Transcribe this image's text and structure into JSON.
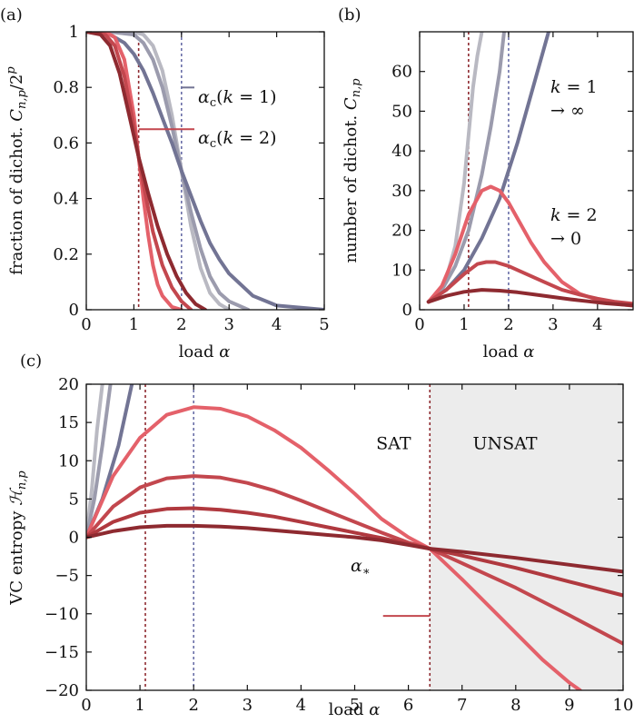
{
  "colors": {
    "grey_light": "#b9b9c2",
    "grey_mid": "#9b9bad",
    "grey_dark": "#727494",
    "red_light": "#e4616a",
    "red_mid": "#c3474e",
    "red_dark": "#8e2a30",
    "ref_red": "#8e2a30",
    "ref_blue": "#6a6fa8",
    "unsat_fill": "#ececec"
  },
  "chart_data": [
    {
      "id": "a",
      "panel_label": "(a)",
      "type": "line",
      "xlabel": "load α",
      "ylabel": "fraction of dichot. C_n,p/2^p",
      "xlim": [
        0,
        5
      ],
      "ylim": [
        0,
        1
      ],
      "xticks": [
        "0",
        "1",
        "2",
        "3",
        "4",
        "5"
      ],
      "yticks": [
        "0",
        "0.2",
        "0.4",
        "0.6",
        "0.8",
        "1"
      ],
      "ref_lines": [
        {
          "x": 1.1,
          "color": "ref_red"
        },
        {
          "x": 2.0,
          "color": "ref_blue"
        }
      ],
      "annotations": [
        {
          "text": "αc(k = 1)",
          "x": 3.4,
          "y": 0.78,
          "arrow_to_x": 2.0
        },
        {
          "text": "αc(k = 2)",
          "x": 3.4,
          "y": 0.63,
          "arrow_to_x": 1.1
        }
      ],
      "series": [
        {
          "color": "grey_light",
          "x": [
            0,
            0.5,
            1,
            1.2,
            1.4,
            1.6,
            1.8,
            2,
            2.2,
            2.4,
            2.6,
            2.8,
            3
          ],
          "y": [
            1,
            1,
            1,
            0.99,
            0.95,
            0.86,
            0.7,
            0.5,
            0.3,
            0.15,
            0.06,
            0.02,
            0
          ]
        },
        {
          "color": "grey_mid",
          "x": [
            0,
            0.5,
            1,
            1.2,
            1.4,
            1.6,
            1.8,
            2,
            2.2,
            2.4,
            2.6,
            2.8,
            3,
            3.4
          ],
          "y": [
            1,
            1,
            0.99,
            0.96,
            0.9,
            0.8,
            0.66,
            0.5,
            0.35,
            0.22,
            0.12,
            0.06,
            0.03,
            0
          ]
        },
        {
          "color": "grey_dark",
          "x": [
            0,
            0.5,
            0.8,
            1,
            1.2,
            1.4,
            1.6,
            1.8,
            2,
            2.2,
            2.4,
            2.6,
            2.8,
            3,
            3.5,
            4,
            5
          ],
          "y": [
            1,
            0.99,
            0.96,
            0.92,
            0.86,
            0.78,
            0.69,
            0.6,
            0.5,
            0.41,
            0.32,
            0.24,
            0.18,
            0.13,
            0.05,
            0.015,
            0
          ]
        },
        {
          "color": "red_light",
          "x": [
            0,
            0.4,
            0.6,
            0.8,
            1,
            1.1,
            1.2,
            1.3,
            1.4,
            1.5,
            1.6,
            1.8,
            2
          ],
          "y": [
            1,
            1,
            0.98,
            0.9,
            0.7,
            0.55,
            0.4,
            0.27,
            0.16,
            0.09,
            0.05,
            0.01,
            0
          ]
        },
        {
          "color": "red_mid",
          "x": [
            0,
            0.4,
            0.6,
            0.8,
            1,
            1.1,
            1.2,
            1.4,
            1.6,
            1.8,
            2,
            2.2
          ],
          "y": [
            1,
            0.99,
            0.95,
            0.84,
            0.66,
            0.55,
            0.45,
            0.28,
            0.16,
            0.08,
            0.03,
            0
          ]
        },
        {
          "color": "red_dark",
          "x": [
            0,
            0.3,
            0.5,
            0.7,
            0.9,
            1.1,
            1.3,
            1.5,
            1.7,
            1.9,
            2.1,
            2.3,
            2.5
          ],
          "y": [
            1,
            0.99,
            0.95,
            0.85,
            0.7,
            0.55,
            0.42,
            0.3,
            0.2,
            0.12,
            0.06,
            0.02,
            0
          ]
        }
      ]
    },
    {
      "id": "b",
      "panel_label": "(b)",
      "type": "line",
      "xlabel": "load α",
      "ylabel": "number of dichot. C_n,p",
      "xlim": [
        0,
        4.8
      ],
      "ylim": [
        0,
        70
      ],
      "xticks": [
        "0",
        "1",
        "2",
        "3",
        "4"
      ],
      "yticks": [
        "0",
        "10",
        "20",
        "30",
        "40",
        "50",
        "60"
      ],
      "ref_lines": [
        {
          "x": 1.1,
          "color": "ref_red"
        },
        {
          "x": 2.0,
          "color": "ref_blue"
        }
      ],
      "annotations": [
        {
          "text": "k = 1",
          "line2": "→ ∞",
          "x": 3.6,
          "y": 55
        },
        {
          "text": "k = 2",
          "line2": "→ 0",
          "x": 3.6,
          "y": 23
        }
      ],
      "series": [
        {
          "color": "grey_light",
          "x": [
            0.2,
            0.4,
            0.6,
            0.8,
            1,
            1.1,
            1.2,
            1.3,
            1.4
          ],
          "y": [
            2,
            4,
            8,
            16,
            32,
            44,
            56,
            64,
            70
          ]
        },
        {
          "color": "grey_mid",
          "x": [
            0.2,
            0.5,
            0.8,
            1.1,
            1.4,
            1.6,
            1.8,
            1.9
          ],
          "y": [
            2,
            5,
            11,
            20,
            34,
            46,
            60,
            70
          ]
        },
        {
          "color": "grey_dark",
          "x": [
            0.2,
            0.6,
            1,
            1.4,
            1.8,
            2.2,
            2.6,
            2.9
          ],
          "y": [
            2,
            5,
            10,
            18,
            28,
            42,
            58,
            70
          ]
        },
        {
          "color": "red_light",
          "x": [
            0.2,
            0.5,
            0.8,
            1.1,
            1.4,
            1.6,
            1.8,
            2,
            2.2,
            2.5,
            2.8,
            3.2,
            3.6,
            4,
            4.4,
            4.8
          ],
          "y": [
            2,
            6,
            14,
            24,
            30,
            31,
            30,
            27,
            23,
            17,
            12,
            7,
            4,
            2.5,
            1.5,
            1
          ]
        },
        {
          "color": "red_mid",
          "x": [
            0.2,
            0.6,
            1,
            1.3,
            1.5,
            1.7,
            2,
            2.4,
            2.8,
            3.2,
            3.6,
            4,
            4.4,
            4.8
          ],
          "y": [
            2,
            5,
            9,
            11.5,
            12,
            12,
            11,
            9,
            7,
            5,
            3.8,
            2.8,
            2,
            1.5
          ]
        },
        {
          "color": "red_dark",
          "x": [
            0.2,
            0.6,
            1,
            1.4,
            1.8,
            2.2,
            2.6,
            3,
            3.4,
            3.8,
            4.2,
            4.8
          ],
          "y": [
            2,
            3.5,
            4.5,
            5,
            4.8,
            4.4,
            3.8,
            3.2,
            2.6,
            2.1,
            1.6,
            1.1
          ]
        }
      ]
    },
    {
      "id": "c",
      "panel_label": "(c)",
      "type": "line",
      "xlabel": "load α",
      "ylabel": "VC entropy H_n,p",
      "xlim": [
        0,
        10
      ],
      "ylim": [
        -20,
        20
      ],
      "xticks": [
        "0",
        "1",
        "2",
        "3",
        "4",
        "5",
        "6",
        "7",
        "8",
        "9",
        "10"
      ],
      "yticks": [
        "−20",
        "−15",
        "−10",
        "−5",
        "0",
        "5",
        "10",
        "15",
        "20"
      ],
      "ref_lines": [
        {
          "x": 1.1,
          "color": "ref_red"
        },
        {
          "x": 2.0,
          "color": "ref_blue"
        },
        {
          "x": 6.4,
          "color": "ref_red"
        }
      ],
      "region_labels": [
        {
          "text": "SAT",
          "x": 5.4,
          "y": 11.5
        },
        {
          "text": "UNSAT",
          "x": 7.2,
          "y": 11.5
        }
      ],
      "unsat_from": 6.4,
      "annotations": [
        {
          "text": "α∗",
          "x": 4.75,
          "y": -11,
          "arrow_to_x": 6.4
        }
      ],
      "series": [
        {
          "color": "grey_light",
          "x": [
            0,
            0.1,
            0.2,
            0.3
          ],
          "y": [
            0,
            6,
            14,
            20
          ]
        },
        {
          "color": "grey_mid",
          "x": [
            0,
            0.15,
            0.3,
            0.45
          ],
          "y": [
            0,
            5,
            12,
            20
          ]
        },
        {
          "color": "grey_dark",
          "x": [
            0,
            0.3,
            0.6,
            0.85
          ],
          "y": [
            0,
            5,
            12,
            20
          ]
        },
        {
          "color": "red_light",
          "x": [
            0,
            0.5,
            1,
            1.5,
            2,
            2.5,
            3,
            3.5,
            4,
            4.5,
            5,
            5.5,
            6,
            6.4,
            7,
            7.5,
            8,
            8.5,
            9,
            9.2
          ],
          "y": [
            0,
            8,
            13,
            16,
            17,
            16.8,
            15.8,
            14,
            11.7,
            8.8,
            5.7,
            2.4,
            0,
            -1.5,
            -5.5,
            -9,
            -12.5,
            -16,
            -19,
            -20
          ]
        },
        {
          "color": "red_mid",
          "x": [
            0,
            0.5,
            1,
            1.5,
            2,
            2.5,
            3,
            3.5,
            4,
            4.5,
            5,
            5.5,
            6,
            6.4,
            7,
            8,
            9,
            10
          ],
          "y": [
            0,
            4,
            6.5,
            7.7,
            8,
            7.8,
            7.1,
            6.1,
            4.8,
            3.4,
            2,
            0.6,
            -0.7,
            -1.5,
            -3.4,
            -6.6,
            -10.2,
            -13.9
          ]
        },
        {
          "color": "red_mid2",
          "x": [
            0,
            0.5,
            1,
            1.5,
            2,
            2.5,
            3,
            3.5,
            4,
            4.5,
            5,
            5.5,
            6,
            6.4,
            7,
            8,
            9,
            10
          ],
          "y": [
            0,
            2,
            3.2,
            3.7,
            3.8,
            3.6,
            3.2,
            2.7,
            2,
            1.3,
            0.6,
            -0.1,
            -0.9,
            -1.5,
            -2.4,
            -4,
            -5.8,
            -7.6
          ]
        },
        {
          "color": "red_dark",
          "x": [
            0,
            0.5,
            1,
            1.5,
            2,
            2.5,
            3,
            3.5,
            4,
            4.5,
            5,
            5.5,
            6,
            6.4,
            7,
            8,
            9,
            10
          ],
          "y": [
            0,
            0.8,
            1.3,
            1.5,
            1.5,
            1.4,
            1.2,
            0.9,
            0.6,
            0.3,
            0,
            -0.4,
            -1,
            -1.5,
            -1.9,
            -2.7,
            -3.6,
            -4.5
          ]
        }
      ]
    }
  ]
}
